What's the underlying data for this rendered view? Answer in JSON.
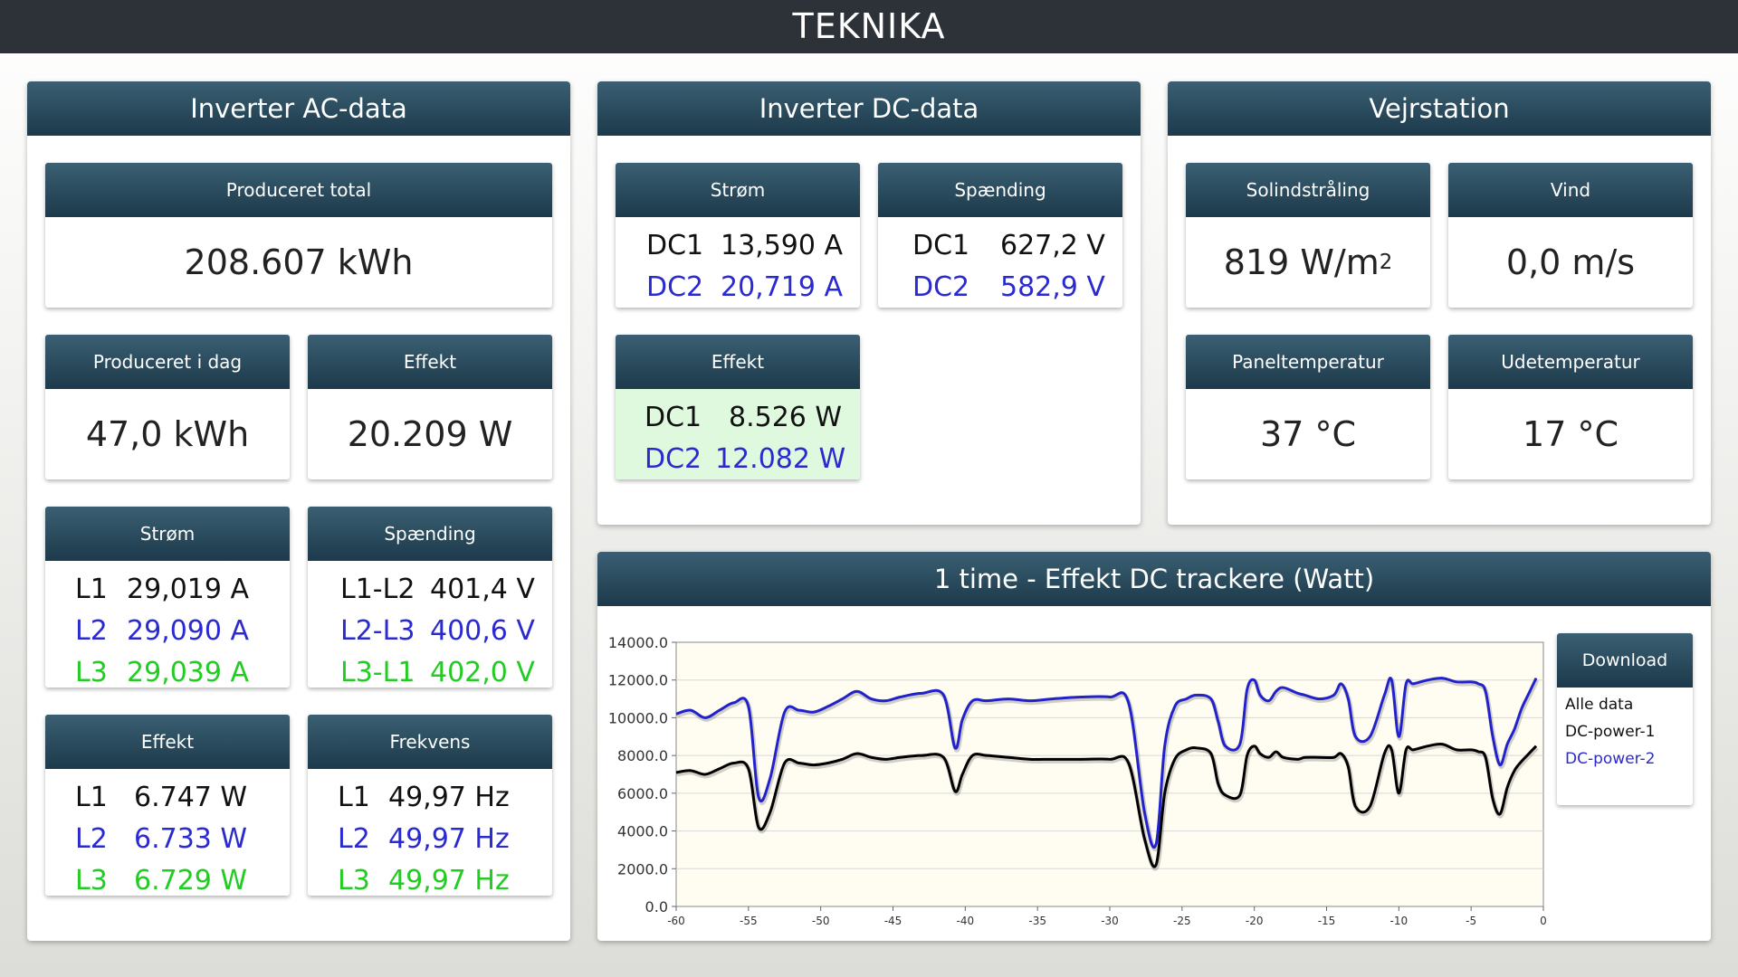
{
  "app": {
    "title": "TEKNIKA"
  },
  "colors": {
    "l1": "#111111",
    "l2": "#2a2ad0",
    "l3": "#22cc22",
    "header": "#1c3a4b",
    "dc_effekt_bg": "#dff9df"
  },
  "ac": {
    "title": "Inverter AC-data",
    "total": {
      "label": "Produceret total",
      "value": "208.607 kWh"
    },
    "today": {
      "label": "Produceret i dag",
      "value": "47,0 kWh"
    },
    "effekt": {
      "label": "Effekt",
      "value": "20.209 W"
    },
    "strom": {
      "label": "Strøm",
      "rows": [
        {
          "k": "L1",
          "v": "29,019 A"
        },
        {
          "k": "L2",
          "v": "29,090 A"
        },
        {
          "k": "L3",
          "v": "29,039 A"
        }
      ]
    },
    "spaending": {
      "label": "Spænding",
      "rows": [
        {
          "k": "L1-L2",
          "v": "401,4 V"
        },
        {
          "k": "L2-L3",
          "v": "400,6 V"
        },
        {
          "k": "L3-L1",
          "v": "402,0 V"
        }
      ]
    },
    "effekt_phase": {
      "label": "Effekt",
      "rows": [
        {
          "k": "L1",
          "v": "6.747 W"
        },
        {
          "k": "L2",
          "v": "6.733 W"
        },
        {
          "k": "L3",
          "v": "6.729 W"
        }
      ]
    },
    "frekvens": {
      "label": "Frekvens",
      "rows": [
        {
          "k": "L1",
          "v": "49,97 Hz"
        },
        {
          "k": "L2",
          "v": "49,97 Hz"
        },
        {
          "k": "L3",
          "v": "49,97 Hz"
        }
      ]
    }
  },
  "dc": {
    "title": "Inverter DC-data",
    "strom": {
      "label": "Strøm",
      "rows": [
        {
          "k": "DC1",
          "v": "13,590 A"
        },
        {
          "k": "DC2",
          "v": "20,719 A"
        }
      ]
    },
    "spaending": {
      "label": "Spænding",
      "rows": [
        {
          "k": "DC1",
          "v": "627,2 V"
        },
        {
          "k": "DC2",
          "v": "582,9 V"
        }
      ]
    },
    "effekt": {
      "label": "Effekt",
      "rows": [
        {
          "k": "DC1",
          "v": "8.526 W"
        },
        {
          "k": "DC2",
          "v": "12.082 W"
        }
      ]
    }
  },
  "weather": {
    "title": "Vejrstation",
    "sol": {
      "label": "Solindstråling",
      "value": "819 W/m",
      "sup": "2"
    },
    "vind": {
      "label": "Vind",
      "value": "0,0 m/s"
    },
    "panel": {
      "label": "Paneltemperatur",
      "value": "37 °C"
    },
    "ude": {
      "label": "Udetemperatur",
      "value": "17 °C"
    }
  },
  "download": {
    "label": "Download",
    "items": [
      "Alle data",
      "DC-power-1",
      "DC-power-2"
    ]
  },
  "chart_data": {
    "type": "line",
    "title": "1 time - Effekt DC trackere (Watt)",
    "xlim": [
      -60,
      0
    ],
    "ylim": [
      0,
      14000
    ],
    "xticks": [
      "-60",
      "-55",
      "-50",
      "-45",
      "-40",
      "-35",
      "-30",
      "-25",
      "-20",
      "-15",
      "-10",
      "-5",
      "0"
    ],
    "yticks": [
      "0.0",
      "2000.0",
      "4000.0",
      "6000.0",
      "8000.0",
      "10000.0",
      "12000.0",
      "14000.0"
    ],
    "grid": true,
    "series": [
      {
        "name": "DC-power-2",
        "color": "#2222cc",
        "x": [
          -60,
          -59,
          -58,
          -57,
          -56,
          -55,
          -54.3,
          -53.5,
          -52.5,
          -51.5,
          -50.5,
          -49.5,
          -48.5,
          -47.5,
          -46.5,
          -45.5,
          -44.5,
          -43,
          -41.5,
          -40.7,
          -40.2,
          -39.5,
          -38.5,
          -37,
          -35.5,
          -34,
          -32,
          -30,
          -28.7,
          -27.6,
          -26.8,
          -26.2,
          -25.5,
          -24.7,
          -24,
          -23,
          -22.5,
          -22,
          -21,
          -20.5,
          -20,
          -19.6,
          -19,
          -18.5,
          -18,
          -17,
          -16.5,
          -15.5,
          -14.5,
          -14,
          -13.5,
          -13,
          -12,
          -11,
          -10.5,
          -10,
          -9.5,
          -9,
          -8,
          -7,
          -6,
          -5,
          -4.5,
          -4,
          -3.5,
          -3,
          -2.5,
          -2,
          -1.5,
          -1,
          -0.5
        ],
        "y": [
          10200,
          10400,
          10000,
          10400,
          10800,
          10600,
          5800,
          6800,
          10300,
          10400,
          10300,
          10600,
          11000,
          11400,
          11000,
          10900,
          11100,
          11300,
          11200,
          8400,
          9900,
          10900,
          10900,
          11000,
          10900,
          11000,
          11100,
          11100,
          10800,
          5000,
          3300,
          8500,
          10600,
          11000,
          11200,
          11000,
          9800,
          8500,
          8600,
          11500,
          12000,
          11200,
          10900,
          11400,
          11600,
          11300,
          11200,
          11000,
          11200,
          11800,
          11000,
          9000,
          9000,
          11200,
          12000,
          9000,
          11800,
          11800,
          12000,
          12100,
          11900,
          11900,
          11800,
          11400,
          9000,
          7500,
          8600,
          9400,
          10500,
          11300,
          12100
        ]
      },
      {
        "name": "DC-power-1",
        "color": "#000000",
        "x": [
          -60,
          -59,
          -58,
          -57,
          -56,
          -55,
          -54.3,
          -53.5,
          -52.5,
          -51.5,
          -50.5,
          -49.5,
          -48.5,
          -47.5,
          -46.5,
          -45.5,
          -44.5,
          -43,
          -41.5,
          -40.7,
          -40.2,
          -39.5,
          -38.5,
          -37,
          -35.5,
          -34,
          -32,
          -30,
          -28.7,
          -27.6,
          -26.8,
          -26.2,
          -25.5,
          -24.7,
          -24,
          -23,
          -22.5,
          -22,
          -21,
          -20.5,
          -20,
          -19.6,
          -19,
          -18.5,
          -18,
          -17,
          -16.5,
          -15.5,
          -14.5,
          -14,
          -13.5,
          -13,
          -12,
          -11,
          -10.5,
          -10,
          -9.5,
          -9,
          -8,
          -7,
          -6,
          -5,
          -4.5,
          -4,
          -3.5,
          -3,
          -2.5,
          -2,
          -1.5,
          -1,
          -0.5
        ],
        "y": [
          7100,
          7200,
          7000,
          7300,
          7600,
          7300,
          4200,
          5000,
          7600,
          7600,
          7500,
          7600,
          7800,
          8100,
          7900,
          7800,
          7900,
          8000,
          7900,
          6100,
          7000,
          8000,
          8000,
          7900,
          7800,
          7800,
          7800,
          7800,
          7600,
          3600,
          2200,
          6000,
          7800,
          8300,
          8400,
          8100,
          6500,
          5900,
          5900,
          8000,
          8500,
          8100,
          7900,
          8200,
          7900,
          7800,
          7900,
          7900,
          7900,
          8100,
          7400,
          5300,
          5300,
          8100,
          8300,
          6000,
          8300,
          8300,
          8500,
          8600,
          8300,
          8300,
          8200,
          7900,
          5700,
          4900,
          6300,
          7200,
          7700,
          8100,
          8500
        ]
      }
    ]
  }
}
